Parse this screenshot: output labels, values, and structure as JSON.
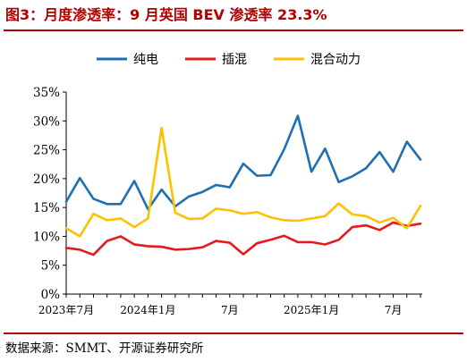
{
  "title": "图3：月度渗透率：9 月英国 BEV 渗透率 23.3%",
  "source": "数据来源：SMMT、开源证券研究所",
  "chart_data": {
    "type": "line",
    "x": [
      "2023-07",
      "2023-08",
      "2023-09",
      "2023-10",
      "2023-11",
      "2023-12",
      "2024-01",
      "2024-02",
      "2024-03",
      "2024-04",
      "2024-05",
      "2024-06",
      "2024-07",
      "2024-08",
      "2024-09",
      "2024-10",
      "2024-11",
      "2024-12",
      "2025-01",
      "2025-02",
      "2025-03",
      "2025-04",
      "2025-05",
      "2025-06",
      "2025-07",
      "2025-08",
      "2025-09"
    ],
    "x_tick_labels": [
      "2023年7月",
      "2024年1月",
      "7月",
      "2025年1月",
      "7月"
    ],
    "x_tick_index": [
      0,
      6,
      12,
      18,
      24
    ],
    "y_tick_labels": [
      "0%",
      "5%",
      "10%",
      "15%",
      "20%",
      "25%",
      "30%",
      "35%"
    ],
    "ylim": [
      0,
      35
    ],
    "grid": false,
    "legend_position": "top-center",
    "series": [
      {
        "name": "纯电",
        "color": "#1f6fb5",
        "values": [
          16.0,
          20.1,
          16.5,
          15.6,
          15.6,
          19.6,
          14.7,
          18.1,
          15.2,
          16.9,
          17.7,
          18.9,
          18.5,
          22.6,
          20.5,
          20.6,
          25.1,
          30.9,
          21.2,
          25.2,
          19.4,
          20.4,
          21.8,
          24.6,
          21.2,
          26.4,
          23.3
        ]
      },
      {
        "name": "插混",
        "color": "#e41a1c",
        "values": [
          8.0,
          7.7,
          6.8,
          9.2,
          10.0,
          8.6,
          8.3,
          8.2,
          7.7,
          7.8,
          8.1,
          9.2,
          8.9,
          6.9,
          8.8,
          9.4,
          10.1,
          9.0,
          9.0,
          8.6,
          9.4,
          11.6,
          11.9,
          11.1,
          12.4,
          11.8,
          12.2
        ]
      },
      {
        "name": "混合动力",
        "color": "#ffc000",
        "values": [
          11.4,
          10.0,
          13.9,
          12.8,
          13.1,
          11.6,
          13.1,
          28.8,
          14.1,
          13.0,
          13.1,
          14.8,
          14.5,
          13.9,
          14.2,
          13.3,
          12.8,
          12.7,
          13.1,
          13.5,
          15.7,
          13.8,
          13.5,
          12.4,
          13.2,
          11.4,
          15.3
        ]
      }
    ]
  }
}
